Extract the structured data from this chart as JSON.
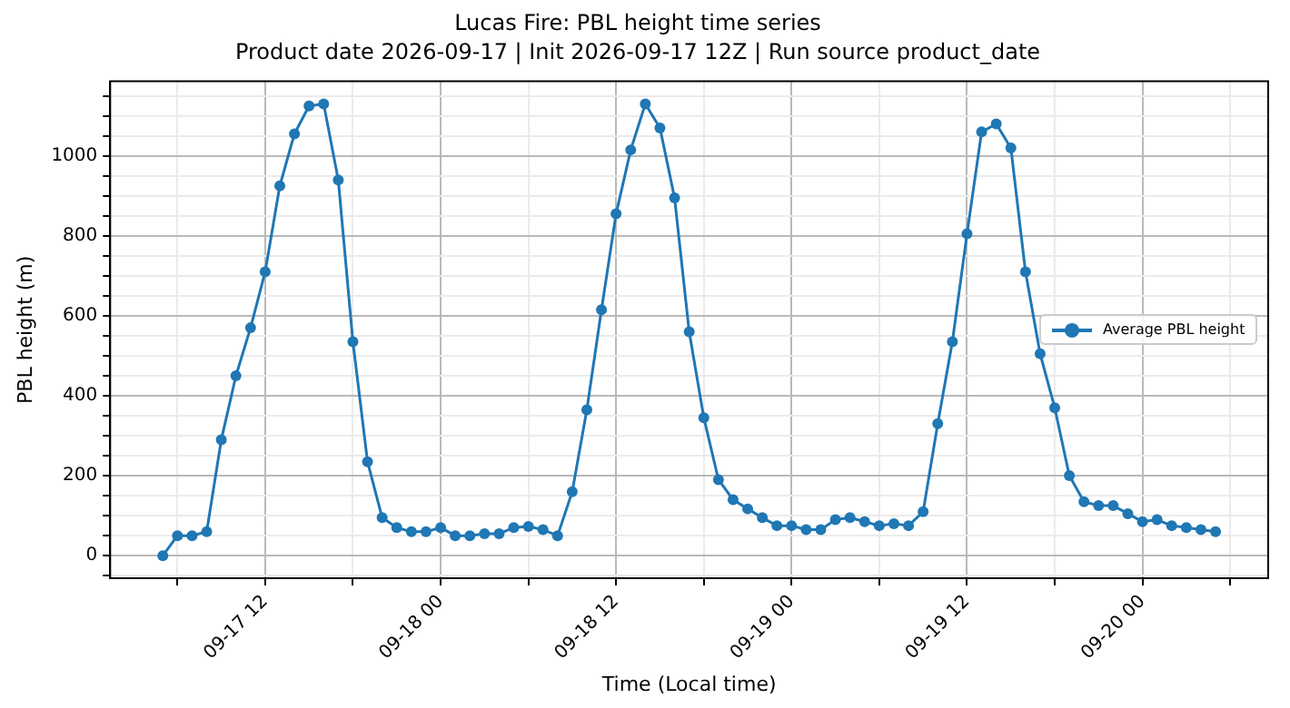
{
  "chart_data": {
    "type": "line",
    "title": "Lucas Fire: PBL height time series",
    "subtitle": "Product date 2026-09-17 | Init 2026-09-17 12Z | Run source product_date",
    "xlabel": "Time (Local time)",
    "ylabel": "PBL height (m)",
    "x": [
      "2026-09-17T05:00",
      "2026-09-17T06:00",
      "2026-09-17T07:00",
      "2026-09-17T08:00",
      "2026-09-17T09:00",
      "2026-09-17T10:00",
      "2026-09-17T11:00",
      "2026-09-17T12:00",
      "2026-09-17T13:00",
      "2026-09-17T14:00",
      "2026-09-17T15:00",
      "2026-09-17T16:00",
      "2026-09-17T17:00",
      "2026-09-17T18:00",
      "2026-09-17T19:00",
      "2026-09-17T20:00",
      "2026-09-17T21:00",
      "2026-09-17T22:00",
      "2026-09-17T23:00",
      "2026-09-18T00:00",
      "2026-09-18T01:00",
      "2026-09-18T02:00",
      "2026-09-18T03:00",
      "2026-09-18T04:00",
      "2026-09-18T05:00",
      "2026-09-18T06:00",
      "2026-09-18T07:00",
      "2026-09-18T08:00",
      "2026-09-18T09:00",
      "2026-09-18T10:00",
      "2026-09-18T11:00",
      "2026-09-18T12:00",
      "2026-09-18T13:00",
      "2026-09-18T14:00",
      "2026-09-18T15:00",
      "2026-09-18T16:00",
      "2026-09-18T17:00",
      "2026-09-18T18:00",
      "2026-09-18T19:00",
      "2026-09-18T20:00",
      "2026-09-18T21:00",
      "2026-09-18T22:00",
      "2026-09-18T23:00",
      "2026-09-19T00:00",
      "2026-09-19T01:00",
      "2026-09-19T02:00",
      "2026-09-19T03:00",
      "2026-09-19T04:00",
      "2026-09-19T05:00",
      "2026-09-19T06:00",
      "2026-09-19T07:00",
      "2026-09-19T08:00",
      "2026-09-19T09:00",
      "2026-09-19T10:00",
      "2026-09-19T11:00",
      "2026-09-19T12:00",
      "2026-09-19T13:00",
      "2026-09-19T14:00",
      "2026-09-19T15:00",
      "2026-09-19T16:00",
      "2026-09-19T17:00",
      "2026-09-19T18:00",
      "2026-09-19T19:00",
      "2026-09-19T20:00",
      "2026-09-19T21:00",
      "2026-09-19T22:00",
      "2026-09-19T23:00",
      "2026-09-20T00:00",
      "2026-09-20T01:00",
      "2026-09-20T02:00",
      "2026-09-20T03:00",
      "2026-09-20T04:00",
      "2026-09-20T05:00"
    ],
    "series": [
      {
        "name": "Average PBL height",
        "color": "#1f77b4",
        "values": [
          0,
          50,
          50,
          60,
          290,
          450,
          570,
          710,
          925,
          1055,
          1125,
          1130,
          940,
          535,
          235,
          95,
          70,
          60,
          60,
          70,
          50,
          50,
          55,
          55,
          70,
          73,
          65,
          50,
          160,
          365,
          615,
          855,
          1015,
          1130,
          1070,
          895,
          560,
          345,
          190,
          140,
          117,
          95,
          75,
          75,
          65,
          65,
          90,
          95,
          85,
          75,
          80,
          75,
          110,
          330,
          535,
          805,
          1060,
          1080,
          1020,
          710,
          505,
          370,
          200,
          135,
          125,
          125,
          105,
          85,
          90,
          75,
          70,
          65,
          60
        ]
      }
    ],
    "xlim": [
      "2026-09-17T01:24",
      "2026-09-20T08:36"
    ],
    "xticks": [
      {
        "value": "2026-09-17T06:00",
        "label": null
      },
      {
        "value": "2026-09-17T12:00",
        "label": "09-17 12"
      },
      {
        "value": "2026-09-17T18:00",
        "label": null
      },
      {
        "value": "2026-09-18T00:00",
        "label": "09-18 00"
      },
      {
        "value": "2026-09-18T06:00",
        "label": null
      },
      {
        "value": "2026-09-18T12:00",
        "label": "09-18 12"
      },
      {
        "value": "2026-09-18T18:00",
        "label": null
      },
      {
        "value": "2026-09-19T00:00",
        "label": "09-19 00"
      },
      {
        "value": "2026-09-19T06:00",
        "label": null
      },
      {
        "value": "2026-09-19T12:00",
        "label": "09-19 12"
      },
      {
        "value": "2026-09-19T18:00",
        "label": null
      },
      {
        "value": "2026-09-20T00:00",
        "label": "09-20 00"
      },
      {
        "value": "2026-09-20T06:00",
        "label": null
      }
    ],
    "ylim": [
      -56.5,
      1186.5
    ],
    "yticks": [
      {
        "value": -50,
        "label": null
      },
      0,
      {
        "value": 50,
        "label": null
      },
      {
        "value": 100,
        "label": null
      },
      {
        "value": 150,
        "label": null
      },
      200,
      {
        "value": 250,
        "label": null
      },
      {
        "value": 300,
        "label": null
      },
      {
        "value": 350,
        "label": null
      },
      400,
      {
        "value": 450,
        "label": null
      },
      {
        "value": 500,
        "label": null
      },
      {
        "value": 550,
        "label": null
      },
      600,
      {
        "value": 650,
        "label": null
      },
      {
        "value": 700,
        "label": null
      },
      {
        "value": 750,
        "label": null
      },
      800,
      {
        "value": 850,
        "label": null
      },
      {
        "value": 900,
        "label": null
      },
      {
        "value": 950,
        "label": null
      },
      1000,
      {
        "value": 1050,
        "label": null
      },
      {
        "value": 1100,
        "label": null
      },
      {
        "value": 1150,
        "label": null
      }
    ],
    "grid": true,
    "legend": "right",
    "marker": "circle",
    "line_style": "solid"
  }
}
